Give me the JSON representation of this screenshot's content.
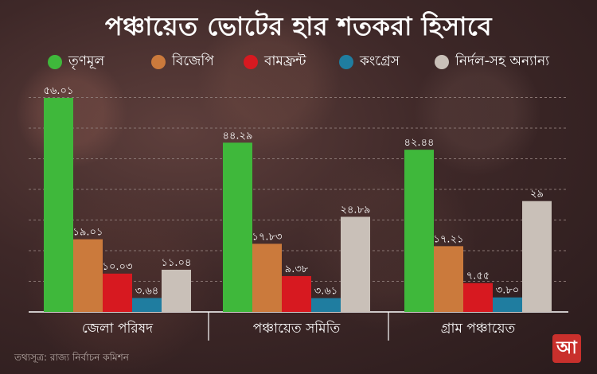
{
  "title": "পঞ্চায়েত ভোটের হার শতকরা হিসাবে",
  "source": "তথ্যসূত্র: রাজ্য নির্বাচন কমিশন",
  "logo_text": "আ",
  "colors": {
    "grid": "#8a7774",
    "axis": "#ffffff"
  },
  "chart_data": {
    "type": "bar",
    "categories": [
      "জেলা পরিষদ",
      "পঞ্চায়েত সমিতি",
      "গ্রাম পঞ্চায়েত"
    ],
    "ylim": [
      0,
      60
    ],
    "grid": true,
    "legend_position": "top",
    "series": [
      {
        "name": "তৃণমূল",
        "color": "#3fb83b",
        "values": [
          56.01,
          44.29,
          42.44
        ],
        "labels": [
          "৫৬.০১",
          "৪৪.২৯",
          "৪২.৪৪"
        ]
      },
      {
        "name": "বিজেপি",
        "color": "#cb7a3c",
        "values": [
          19.01,
          17.83,
          17.21
        ],
        "labels": [
          "১৯.০১",
          "১৭.৮৩",
          "১৭.২১"
        ]
      },
      {
        "name": "বামফ্রন্ট",
        "color": "#d71920",
        "values": [
          10.03,
          9.38,
          7.55
        ],
        "labels": [
          "১০.০৩",
          "৯.৩৮",
          "৭.৫৫"
        ]
      },
      {
        "name": "কংগ্রেস",
        "color": "#1f7da0",
        "values": [
          3.64,
          3.61,
          3.8
        ],
        "labels": [
          "৩.৬৪",
          "৩.৬১",
          "৩.৮০"
        ]
      },
      {
        "name": "নির্দল-সহ অন্যান্য",
        "color": "#c9c0b8",
        "values": [
          11.04,
          24.89,
          29
        ],
        "labels": [
          "১১.০৪",
          "২৪.৮৯",
          "২৯"
        ]
      }
    ]
  }
}
